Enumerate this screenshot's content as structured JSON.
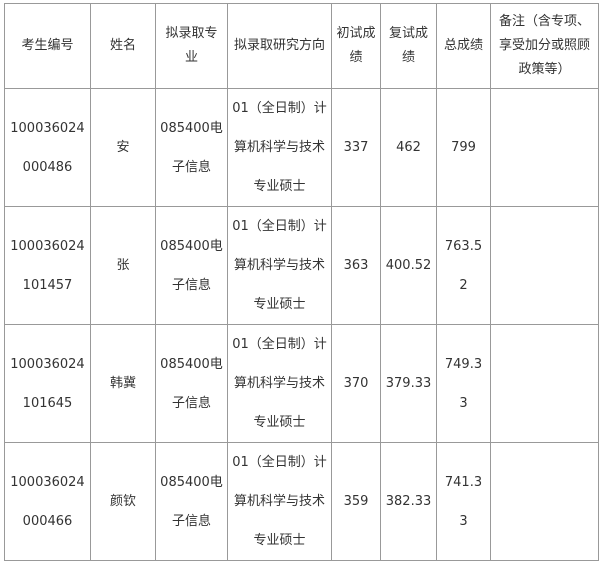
{
  "headers": [
    "考生编号",
    "姓名",
    "拟录取专业",
    "拟录取研究方向",
    "初试成绩",
    "复试成绩",
    "总成绩",
    "备注（含专项、享受加分或照顾政策等）"
  ],
  "rows": [
    {
      "id": "100036024000486",
      "name": "安",
      "major": "085400电子信息",
      "direction": "01（全日制）计算机科学与技术专业硕士",
      "initial": "337",
      "retest": "462",
      "total": "799",
      "note": ""
    },
    {
      "id": "100036024101457",
      "name": "张",
      "major": "085400电子信息",
      "direction": "01（全日制）计算机科学与技术专业硕士",
      "initial": "363",
      "retest": "400.52",
      "total": "763.52",
      "note": ""
    },
    {
      "id": "100036024101645",
      "name": "韩冀",
      "major": "085400电子信息",
      "direction": "01（全日制）计算机科学与技术专业硕士",
      "initial": "370",
      "retest": "379.33",
      "total": "749.33",
      "note": ""
    },
    {
      "id": "100036024000466",
      "name": "颜钦",
      "major": "085400电子信息",
      "direction": "01（全日制）计算机科学与技术专业硕士",
      "initial": "359",
      "retest": "382.33",
      "total": "741.33",
      "note": ""
    }
  ]
}
